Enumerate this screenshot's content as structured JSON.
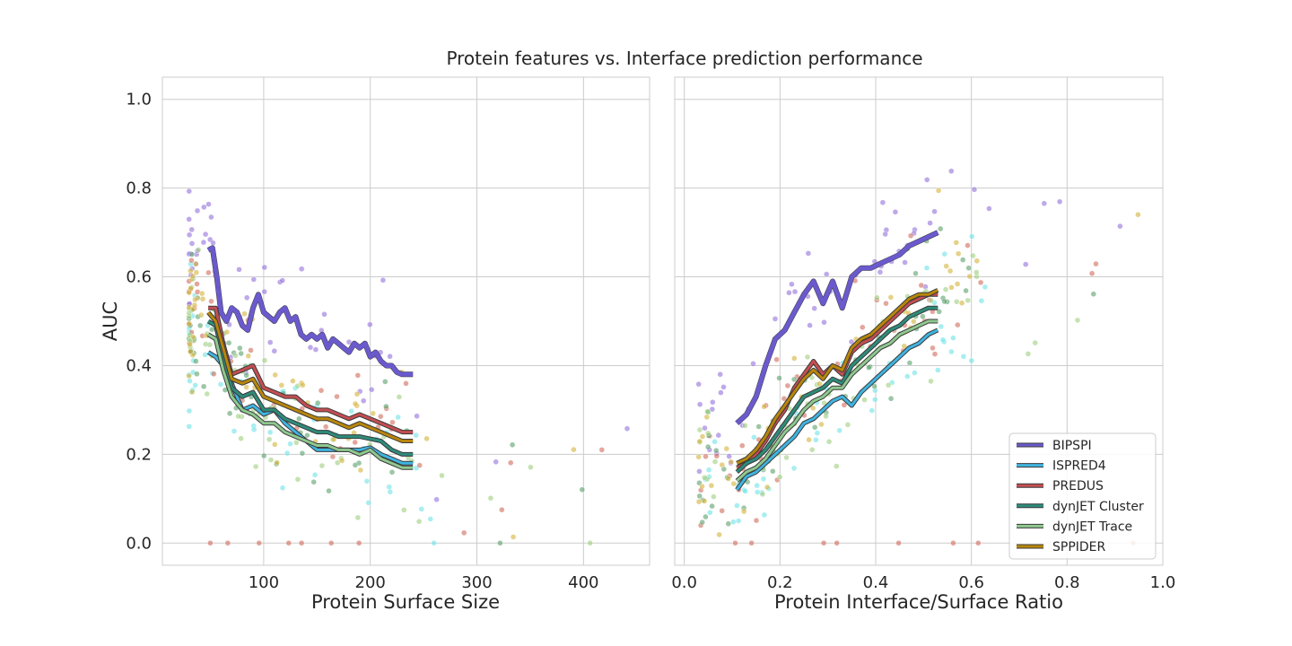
{
  "chart_data": [
    {
      "type": "scatter",
      "title": "Protein features vs. Interface prediction performance",
      "xlabel": "Protein Surface Size",
      "ylabel": "AUC",
      "xlim": [
        5,
        462
      ],
      "ylim": [
        -0.05,
        1.05
      ],
      "xticks": [
        "100",
        "200",
        "300",
        "400"
      ],
      "yticks": [
        "0.0",
        "0.2",
        "0.4",
        "0.6",
        "0.8",
        "1.0"
      ],
      "grid": true,
      "series": [
        {
          "name": "BIPSPI",
          "color": "#6a5acd",
          "point_color": "#9370db",
          "x": [
            48,
            52,
            56,
            60,
            65,
            70,
            75,
            80,
            85,
            90,
            95,
            100,
            105,
            110,
            115,
            120,
            125,
            130,
            135,
            140,
            145,
            150,
            155,
            160,
            165,
            170,
            175,
            180,
            185,
            190,
            195,
            200,
            205,
            210,
            215,
            220,
            225,
            230,
            235,
            240
          ],
          "y": [
            0.66,
            0.665,
            0.6,
            0.52,
            0.5,
            0.53,
            0.52,
            0.49,
            0.48,
            0.53,
            0.56,
            0.52,
            0.51,
            0.5,
            0.52,
            0.53,
            0.5,
            0.51,
            0.47,
            0.46,
            0.47,
            0.46,
            0.47,
            0.44,
            0.46,
            0.45,
            0.44,
            0.43,
            0.45,
            0.44,
            0.45,
            0.42,
            0.43,
            0.41,
            0.4,
            0.4,
            0.385,
            0.38,
            0.38,
            0.38
          ]
        },
        {
          "name": "ISPRED4",
          "color": "#40b4e0",
          "point_color": "#6ee3e8",
          "x": [
            48,
            55,
            62,
            70,
            80,
            90,
            100,
            110,
            120,
            130,
            140,
            150,
            160,
            170,
            180,
            190,
            200,
            210,
            220,
            230,
            240
          ],
          "y": [
            0.43,
            0.42,
            0.4,
            0.36,
            0.3,
            0.31,
            0.29,
            0.3,
            0.27,
            0.25,
            0.23,
            0.21,
            0.21,
            0.21,
            0.21,
            0.21,
            0.215,
            0.2,
            0.19,
            0.18,
            0.18
          ]
        },
        {
          "name": "PREDUS",
          "color": "#c44e52",
          "point_color": "#d16a5c",
          "x": [
            48,
            55,
            62,
            70,
            80,
            90,
            100,
            110,
            120,
            130,
            140,
            150,
            160,
            170,
            180,
            190,
            200,
            210,
            220,
            230,
            240
          ],
          "y": [
            0.53,
            0.53,
            0.45,
            0.38,
            0.39,
            0.4,
            0.35,
            0.34,
            0.33,
            0.33,
            0.31,
            0.3,
            0.3,
            0.29,
            0.28,
            0.29,
            0.28,
            0.27,
            0.26,
            0.25,
            0.25
          ]
        },
        {
          "name": "dynJET Cluster",
          "color": "#2e8b7a",
          "point_color": "#5aa06a",
          "x": [
            48,
            55,
            62,
            70,
            80,
            90,
            100,
            110,
            120,
            130,
            140,
            150,
            160,
            170,
            180,
            190,
            200,
            210,
            220,
            230,
            240
          ],
          "y": [
            0.5,
            0.49,
            0.42,
            0.35,
            0.33,
            0.34,
            0.3,
            0.3,
            0.28,
            0.27,
            0.26,
            0.25,
            0.25,
            0.24,
            0.24,
            0.24,
            0.235,
            0.23,
            0.21,
            0.2,
            0.2
          ]
        },
        {
          "name": "dynJET Trace",
          "color": "#8fc88f",
          "point_color": "#9fcf7f",
          "x": [
            48,
            55,
            62,
            70,
            80,
            90,
            100,
            110,
            120,
            130,
            140,
            150,
            160,
            170,
            180,
            190,
            200,
            210,
            220,
            230,
            240
          ],
          "y": [
            0.47,
            0.46,
            0.39,
            0.33,
            0.3,
            0.29,
            0.27,
            0.27,
            0.25,
            0.24,
            0.23,
            0.22,
            0.22,
            0.21,
            0.21,
            0.2,
            0.21,
            0.19,
            0.18,
            0.17,
            0.17
          ]
        },
        {
          "name": "SPPIDER",
          "color": "#b8860b",
          "point_color": "#d4b23a",
          "x": [
            48,
            55,
            62,
            70,
            80,
            90,
            100,
            110,
            120,
            130,
            140,
            150,
            160,
            170,
            180,
            190,
            200,
            210,
            220,
            230,
            240
          ],
          "y": [
            0.52,
            0.5,
            0.44,
            0.37,
            0.36,
            0.37,
            0.33,
            0.32,
            0.31,
            0.3,
            0.29,
            0.28,
            0.28,
            0.27,
            0.26,
            0.27,
            0.26,
            0.25,
            0.24,
            0.23,
            0.23
          ]
        }
      ]
    },
    {
      "type": "scatter",
      "xlabel": "Protein Interface/Surface Ratio",
      "ylabel": "",
      "xlim": [
        -0.02,
        1.0
      ],
      "ylim": [
        -0.05,
        1.05
      ],
      "xticks": [
        "0.0",
        "0.2",
        "0.4",
        "0.6",
        "0.8",
        "1.0"
      ],
      "grid": true,
      "legend": "lower-right",
      "series": [
        {
          "name": "BIPSPI",
          "color": "#6a5acd",
          "point_color": "#9370db",
          "x": [
            0.11,
            0.13,
            0.15,
            0.17,
            0.19,
            0.21,
            0.23,
            0.25,
            0.27,
            0.29,
            0.31,
            0.33,
            0.35,
            0.37,
            0.39,
            0.41,
            0.43,
            0.45,
            0.47,
            0.49,
            0.51,
            0.53
          ],
          "y": [
            0.27,
            0.29,
            0.33,
            0.4,
            0.46,
            0.48,
            0.52,
            0.56,
            0.59,
            0.54,
            0.59,
            0.53,
            0.6,
            0.62,
            0.62,
            0.63,
            0.64,
            0.65,
            0.67,
            0.68,
            0.69,
            0.7
          ]
        },
        {
          "name": "ISPRED4",
          "color": "#40b4e0",
          "point_color": "#6ee3e8",
          "x": [
            0.11,
            0.13,
            0.15,
            0.17,
            0.19,
            0.21,
            0.23,
            0.25,
            0.27,
            0.29,
            0.31,
            0.33,
            0.35,
            0.37,
            0.39,
            0.41,
            0.43,
            0.45,
            0.47,
            0.49,
            0.51,
            0.53
          ],
          "y": [
            0.12,
            0.15,
            0.16,
            0.18,
            0.2,
            0.22,
            0.24,
            0.27,
            0.28,
            0.3,
            0.32,
            0.33,
            0.31,
            0.34,
            0.36,
            0.38,
            0.4,
            0.42,
            0.44,
            0.45,
            0.47,
            0.48
          ]
        },
        {
          "name": "PREDUS",
          "color": "#c44e52",
          "point_color": "#d16a5c",
          "x": [
            0.11,
            0.13,
            0.15,
            0.17,
            0.19,
            0.21,
            0.23,
            0.25,
            0.27,
            0.29,
            0.31,
            0.33,
            0.35,
            0.37,
            0.39,
            0.41,
            0.43,
            0.45,
            0.47,
            0.49,
            0.51,
            0.53
          ],
          "y": [
            0.17,
            0.18,
            0.2,
            0.23,
            0.27,
            0.3,
            0.35,
            0.38,
            0.41,
            0.38,
            0.4,
            0.38,
            0.43,
            0.45,
            0.46,
            0.48,
            0.5,
            0.52,
            0.54,
            0.55,
            0.56,
            0.56
          ]
        },
        {
          "name": "dynJET Cluster",
          "color": "#2e8b7a",
          "point_color": "#5aa06a",
          "x": [
            0.11,
            0.13,
            0.15,
            0.17,
            0.19,
            0.21,
            0.23,
            0.25,
            0.27,
            0.29,
            0.31,
            0.33,
            0.35,
            0.37,
            0.39,
            0.41,
            0.43,
            0.45,
            0.47,
            0.49,
            0.51,
            0.53
          ],
          "y": [
            0.16,
            0.18,
            0.19,
            0.21,
            0.24,
            0.27,
            0.3,
            0.33,
            0.34,
            0.35,
            0.37,
            0.36,
            0.4,
            0.42,
            0.44,
            0.46,
            0.48,
            0.49,
            0.51,
            0.52,
            0.53,
            0.53
          ]
        },
        {
          "name": "dynJET Trace",
          "color": "#8fc88f",
          "point_color": "#9fcf7f",
          "x": [
            0.11,
            0.13,
            0.15,
            0.17,
            0.19,
            0.21,
            0.23,
            0.25,
            0.27,
            0.29,
            0.31,
            0.33,
            0.35,
            0.37,
            0.39,
            0.41,
            0.43,
            0.45,
            0.47,
            0.49,
            0.51,
            0.53
          ],
          "y": [
            0.14,
            0.16,
            0.17,
            0.19,
            0.22,
            0.25,
            0.27,
            0.3,
            0.32,
            0.33,
            0.35,
            0.35,
            0.38,
            0.4,
            0.42,
            0.44,
            0.45,
            0.47,
            0.48,
            0.49,
            0.5,
            0.5
          ]
        },
        {
          "name": "SPPIDER",
          "color": "#b8860b",
          "point_color": "#d4b23a",
          "x": [
            0.11,
            0.13,
            0.15,
            0.17,
            0.19,
            0.21,
            0.23,
            0.25,
            0.27,
            0.29,
            0.31,
            0.33,
            0.35,
            0.37,
            0.39,
            0.41,
            0.43,
            0.45,
            0.47,
            0.49,
            0.51,
            0.53
          ],
          "y": [
            0.18,
            0.19,
            0.21,
            0.24,
            0.28,
            0.31,
            0.34,
            0.37,
            0.39,
            0.37,
            0.4,
            0.39,
            0.44,
            0.46,
            0.47,
            0.49,
            0.51,
            0.53,
            0.55,
            0.56,
            0.56,
            0.57
          ]
        }
      ]
    }
  ]
}
